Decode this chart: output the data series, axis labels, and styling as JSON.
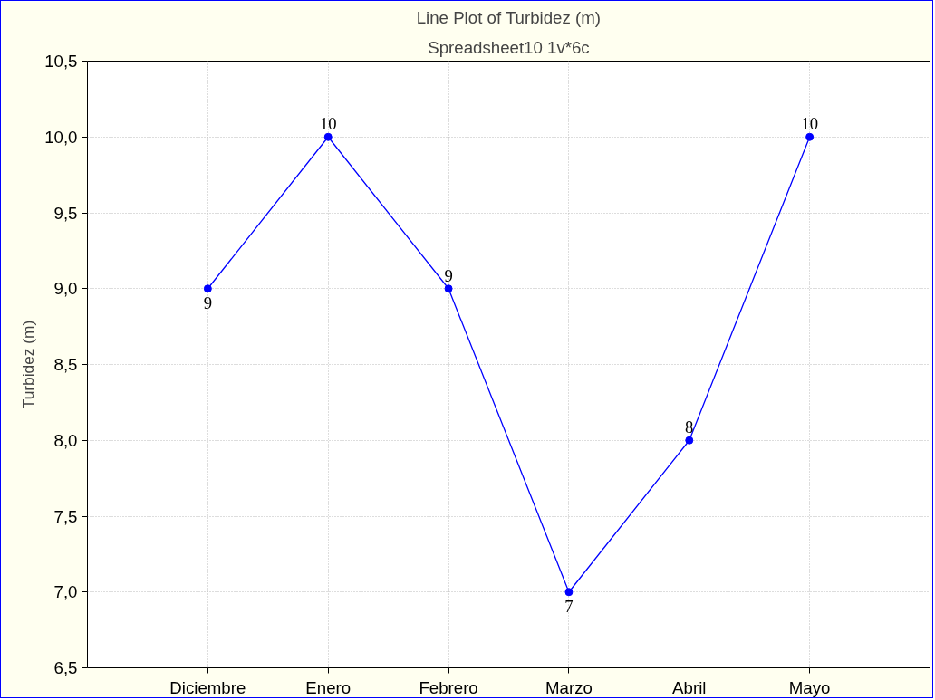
{
  "chart_data": {
    "type": "line",
    "title": "Line Plot of Turbidez (m)",
    "subtitle": "Spreadsheet10 1v*6c",
    "ylabel": "Turbidez (m)",
    "categories": [
      "Diciembre",
      "Enero",
      "Febrero",
      "Marzo",
      "Abril",
      "Mayo"
    ],
    "series": [
      {
        "color": "#0000ff",
        "values": [
          9,
          10,
          9,
          7,
          8,
          10
        ]
      }
    ],
    "ylim": [
      6.5,
      10.5
    ],
    "yticks": [
      {
        "value": 6.5,
        "label": "6,5"
      },
      {
        "value": 7,
        "label": "7,0"
      },
      {
        "value": 7.5,
        "label": "7,5"
      },
      {
        "value": 8,
        "label": "8,0"
      },
      {
        "value": 8.5,
        "label": "8,5"
      },
      {
        "value": 9,
        "label": "9,0"
      },
      {
        "value": 9.5,
        "label": "9,5"
      },
      {
        "value": 10,
        "label": "10,0"
      },
      {
        "value": 10.5,
        "label": "10,5"
      }
    ],
    "grid": true,
    "marker": "circle",
    "line_style": "solid",
    "data_labels": true
  }
}
